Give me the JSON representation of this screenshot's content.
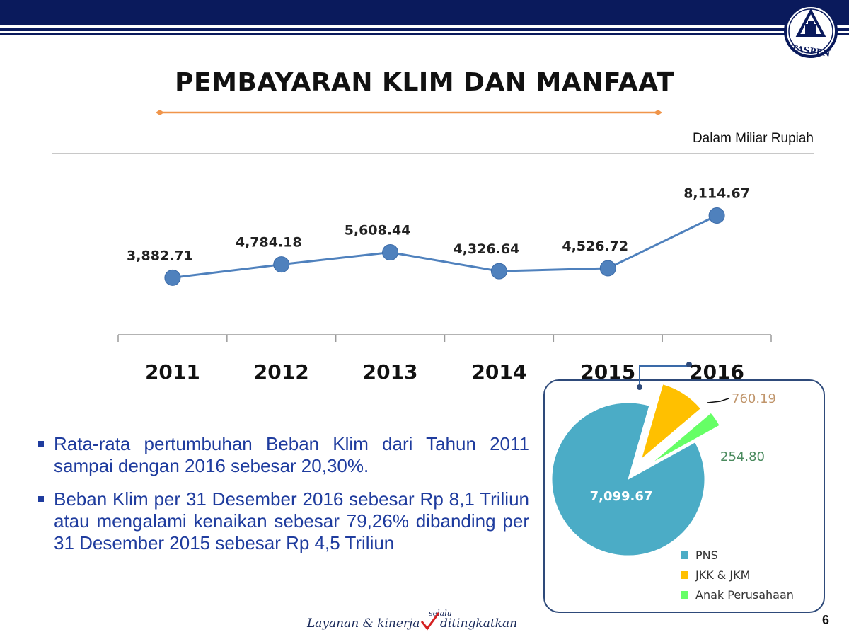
{
  "header": {
    "logo_text": "TASPEN"
  },
  "page_title": "PEMBAYARAN KLIM DAN MANFAAT",
  "unit_note": "Dalam Miliar Rupiah",
  "chart_data": [
    {
      "type": "line",
      "categories": [
        "2011",
        "2012",
        "2013",
        "2014",
        "2015",
        "2016"
      ],
      "values": [
        3882.71,
        4784.18,
        5608.44,
        4326.64,
        4526.72,
        8114.67
      ],
      "data_labels": [
        "3,882.71",
        "4,784.18",
        "5,608.44",
        "4,326.64",
        "4,526.72",
        "8,114.67"
      ],
      "title": "",
      "xlabel": "",
      "ylabel": "",
      "ylim": [
        0,
        10500
      ],
      "grid": false,
      "color": "#4f81bd"
    },
    {
      "type": "pie",
      "labels": [
        "PNS",
        "JKK & JKM",
        "Anak Perusahaan"
      ],
      "values": [
        7099.67,
        760.19,
        254.8
      ],
      "data_labels": [
        "7,099.67",
        "760.19",
        "254.80"
      ],
      "colors": [
        "#4bacc6",
        "#ffc000",
        "#66ff66"
      ],
      "label_colors": [
        "#ffffff",
        "#c0956b",
        "#4a8a5e"
      ],
      "legend_position": "bottom-right",
      "exploded": [
        false,
        true,
        true
      ]
    }
  ],
  "bullets": [
    "Rata-rata pertumbuhan Beban Klim dari Tahun 2011 sampai dengan 2016 sebesar 20,30%.",
    "Beban Klim per 31 Desember 2016 sebesar  Rp 8,1 Triliun atau mengalami kenaikan sebesar 79,26% dibanding per 31 Desember 2015 sebesar Rp 4,5 Triliun"
  ],
  "footer": {
    "slogan_main": "Layanan & kinerja",
    "slogan_top": "selalu",
    "slogan_end": "ditingkatkan"
  },
  "page_number": "6"
}
